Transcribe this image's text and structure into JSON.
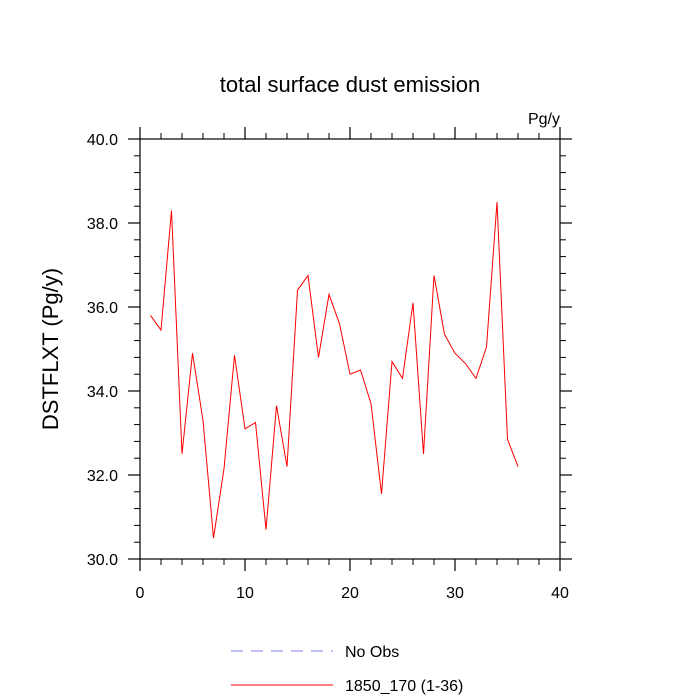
{
  "chart_data": {
    "type": "line",
    "title": "total surface dust emission",
    "units_label": "Pg/y",
    "ylabel": "DSTFLXT  (Pg/y)",
    "xlabel": "",
    "xlim": [
      0,
      40
    ],
    "ylim": [
      30,
      40
    ],
    "x_ticks": [
      0,
      10,
      20,
      30,
      40
    ],
    "x_tick_labels": [
      "0",
      "10",
      "20",
      "30",
      "40"
    ],
    "y_ticks": [
      30,
      32,
      34,
      36,
      38,
      40
    ],
    "y_tick_labels": [
      "30.0",
      "32.0",
      "34.0",
      "36.0",
      "38.0",
      "40.0"
    ],
    "grid": false,
    "legend_position": "bottom",
    "legend": [
      {
        "label": "No Obs",
        "color": "#8080ff",
        "style": "dashed"
      },
      {
        "label": "1850_170 (1-36)",
        "color": "#ff0000",
        "style": "solid"
      }
    ],
    "series": [
      {
        "name": "1850_170 (1-36)",
        "color": "#ff0000",
        "x": [
          1,
          2,
          3,
          4,
          5,
          6,
          7,
          8,
          9,
          10,
          11,
          12,
          13,
          14,
          15,
          16,
          17,
          18,
          19,
          20,
          21,
          22,
          23,
          24,
          25,
          26,
          27,
          28,
          29,
          30,
          31,
          32,
          33,
          34,
          35,
          36
        ],
        "values": [
          35.8,
          35.45,
          38.3,
          32.5,
          34.9,
          33.3,
          30.5,
          32.15,
          34.85,
          33.1,
          33.25,
          30.7,
          33.65,
          32.2,
          36.4,
          36.75,
          34.8,
          36.3,
          35.6,
          34.4,
          34.5,
          33.7,
          31.55,
          34.7,
          34.3,
          36.1,
          32.5,
          36.75,
          35.35,
          34.9,
          34.65,
          34.3,
          35.05,
          38.5,
          32.85,
          32.2
        ]
      }
    ]
  }
}
